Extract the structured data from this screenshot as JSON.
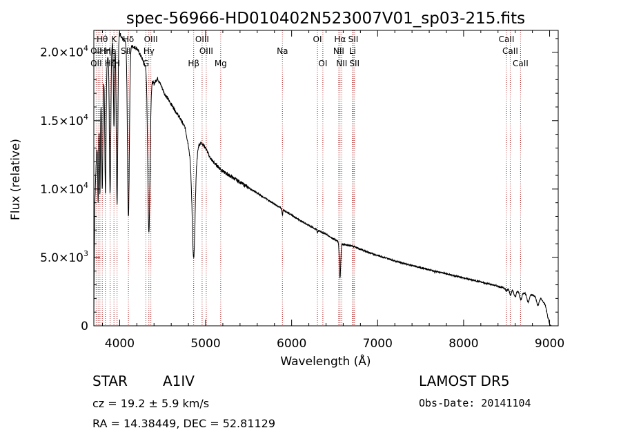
{
  "chart_data": {
    "type": "line",
    "title": "spec-56966-HD010402N523007V01_sp03-215.fits",
    "xlabel": "Wavelength (Å)",
    "ylabel": "Flux (relative)",
    "xlim": [
      3700,
      9100
    ],
    "ylim": [
      0,
      21600
    ],
    "x_ticks": [
      {
        "value": 4000,
        "label": "4000"
      },
      {
        "value": 5000,
        "label": "5000"
      },
      {
        "value": 6000,
        "label": "6000"
      },
      {
        "value": 7000,
        "label": "7000"
      },
      {
        "value": 8000,
        "label": "8000"
      },
      {
        "value": 9000,
        "label": "9000"
      }
    ],
    "y_ticks": [
      {
        "value": 0,
        "mant": "0",
        "exp": ""
      },
      {
        "value": 5000,
        "mant": "5.0×10",
        "exp": "3"
      },
      {
        "value": 10000,
        "mant": "1.0×10",
        "exp": "4"
      },
      {
        "value": 15000,
        "mant": "1.5×10",
        "exp": "4"
      },
      {
        "value": 20000,
        "mant": "2.0×10",
        "exp": "4"
      }
    ],
    "grid": false,
    "series": [
      {
        "color": "#000000",
        "continuum": [
          [
            3700,
            200
          ],
          [
            3705,
            5000
          ],
          [
            3712,
            9000
          ],
          [
            3722,
            11000
          ],
          [
            3732,
            12500
          ],
          [
            3745,
            14000
          ],
          [
            3760,
            15500
          ],
          [
            3780,
            16500
          ],
          [
            3800,
            17500
          ],
          [
            3830,
            18500
          ],
          [
            3860,
            19500
          ],
          [
            3890,
            20200
          ],
          [
            3920,
            20800
          ],
          [
            3950,
            21200
          ],
          [
            3980,
            21600
          ],
          [
            4010,
            21300
          ],
          [
            4040,
            20900
          ],
          [
            4080,
            20700
          ],
          [
            4120,
            20500
          ],
          [
            4160,
            20400
          ],
          [
            4200,
            20300
          ],
          [
            4240,
            19800
          ],
          [
            4280,
            19300
          ],
          [
            4320,
            18700
          ],
          [
            4360,
            18000
          ],
          [
            4400,
            17700
          ],
          [
            4440,
            18100
          ],
          [
            4480,
            17600
          ],
          [
            4520,
            17000
          ],
          [
            4600,
            16200
          ],
          [
            4700,
            15200
          ],
          [
            4760,
            14500
          ],
          [
            4800,
            13200
          ],
          [
            4830,
            11800
          ],
          [
            4900,
            12500
          ],
          [
            4920,
            13200
          ],
          [
            4950,
            13400
          ],
          [
            5000,
            13000
          ],
          [
            5050,
            12300
          ],
          [
            5100,
            11900
          ],
          [
            5200,
            11300
          ],
          [
            5300,
            10900
          ],
          [
            5400,
            10500
          ],
          [
            5500,
            10100
          ],
          [
            5600,
            9700
          ],
          [
            5700,
            9300
          ],
          [
            5800,
            8900
          ],
          [
            5900,
            8500
          ],
          [
            6000,
            8100
          ],
          [
            6100,
            7700
          ],
          [
            6200,
            7350
          ],
          [
            6300,
            7000
          ],
          [
            6400,
            6700
          ],
          [
            6500,
            6300
          ],
          [
            6560,
            6100
          ],
          [
            6600,
            5950
          ],
          [
            6700,
            5850
          ],
          [
            6800,
            5600
          ],
          [
            6900,
            5350
          ],
          [
            7000,
            5150
          ],
          [
            7200,
            4750
          ],
          [
            7400,
            4400
          ],
          [
            7600,
            4100
          ],
          [
            7800,
            3800
          ],
          [
            8000,
            3500
          ],
          [
            8200,
            3200
          ],
          [
            8400,
            2900
          ],
          [
            8500,
            2700
          ],
          [
            8600,
            2550
          ],
          [
            8700,
            2400
          ],
          [
            8800,
            2250
          ],
          [
            8900,
            2000
          ],
          [
            8950,
            1500
          ],
          [
            8980,
            600
          ],
          [
            9000,
            100
          ],
          [
            9020,
            0
          ],
          [
            9100,
            0
          ]
        ],
        "absorption_lines": [
          {
            "center": 3750,
            "depth": 5500,
            "width": 5
          },
          {
            "center": 3771,
            "depth": 6500,
            "width": 5
          },
          {
            "center": 3798,
            "depth": 7500,
            "width": 6
          },
          {
            "center": 3835,
            "depth": 9000,
            "width": 7
          },
          {
            "center": 3889,
            "depth": 10500,
            "width": 8
          },
          {
            "center": 3934,
            "depth": 6500,
            "width": 6
          },
          {
            "center": 3970,
            "depth": 12500,
            "width": 9
          },
          {
            "center": 4102,
            "depth": 12700,
            "width": 11
          },
          {
            "center": 4340,
            "depth": 11500,
            "width": 13
          },
          {
            "center": 4861,
            "depth": 7200,
            "width": 16
          },
          {
            "center": 5893,
            "depth": 450,
            "width": 4
          },
          {
            "center": 6300,
            "depth": 200,
            "width": 4
          },
          {
            "center": 6563,
            "depth": 2600,
            "width": 8
          },
          {
            "center": 7665,
            "depth": 150,
            "width": 3
          },
          {
            "center": 8498,
            "depth": 160,
            "width": 8
          },
          {
            "center": 8545,
            "depth": 350,
            "width": 10
          },
          {
            "center": 8598,
            "depth": 450,
            "width": 11
          },
          {
            "center": 8665,
            "depth": 550,
            "width": 12
          },
          {
            "center": 8750,
            "depth": 600,
            "width": 13
          },
          {
            "center": 8863,
            "depth": 600,
            "width": 14
          }
        ]
      }
    ],
    "line_markers": [
      {
        "label": "Hθ",
        "x": 3798,
        "row": 0
      },
      {
        "label": "K",
        "x": 3934,
        "row": 0
      },
      {
        "label": "Hδ",
        "x": 4102,
        "row": 0
      },
      {
        "label": "OIII",
        "x": 4363,
        "row": 0
      },
      {
        "label": "OIII",
        "x": 4959,
        "row": 0
      },
      {
        "label": "OI",
        "x": 6300,
        "row": 0
      },
      {
        "label": "Hα",
        "x": 6563,
        "row": 0
      },
      {
        "label": "SII",
        "x": 6717,
        "row": 0
      },
      {
        "label": "CaII",
        "x": 8498,
        "row": 0
      },
      {
        "label": "OII",
        "x": 3727,
        "row": 1
      },
      {
        "label": "Hη",
        "x": 3835,
        "row": 1
      },
      {
        "label": "Hε",
        "x": 3889,
        "row": 1
      },
      {
        "label": "SII",
        "x": 4072,
        "row": 1
      },
      {
        "label": "Hγ",
        "x": 4340,
        "row": 1
      },
      {
        "label": "OIII",
        "x": 5007,
        "row": 1
      },
      {
        "label": "Na",
        "x": 5893,
        "row": 1
      },
      {
        "label": "NII",
        "x": 6548,
        "row": 1
      },
      {
        "label": "Li",
        "x": 6708,
        "row": 1
      },
      {
        "label": "CaII",
        "x": 8542,
        "row": 1
      },
      {
        "label": "OII",
        "x": 3727,
        "row": 2
      },
      {
        "label": "Hζ",
        "x": 3889,
        "row": 2
      },
      {
        "label": "H",
        "x": 3970,
        "row": 2
      },
      {
        "label": "G",
        "x": 4305,
        "row": 2
      },
      {
        "label": "Hβ",
        "x": 4861,
        "row": 2
      },
      {
        "label": "Mg",
        "x": 5175,
        "row": 2
      },
      {
        "label": "OI",
        "x": 6363,
        "row": 2
      },
      {
        "label": "NII",
        "x": 6583,
        "row": 2
      },
      {
        "label": "SII",
        "x": 6731,
        "row": 2
      },
      {
        "label": "CaII",
        "x": 8662,
        "row": 2
      }
    ],
    "marker_lines": [
      3727,
      3750,
      3771,
      3798,
      3835,
      3889,
      3934,
      3970,
      4102,
      4305,
      4340,
      4363,
      4861,
      4959,
      5007,
      5175,
      5893,
      6300,
      6363,
      6548,
      6563,
      6583,
      6708,
      6717,
      6731,
      8498,
      8542,
      8662
    ],
    "marker_color": "#b22222"
  },
  "info": {
    "object_class": "STAR",
    "subclass": "A1IV",
    "cz_text": "cz = 19.2 ± 5.9 km/s",
    "radec_text": "RA =  14.38449, DEC =  52.81129",
    "survey": "LAMOST  DR5",
    "obs_date": "Obs-Date: 20141104"
  }
}
